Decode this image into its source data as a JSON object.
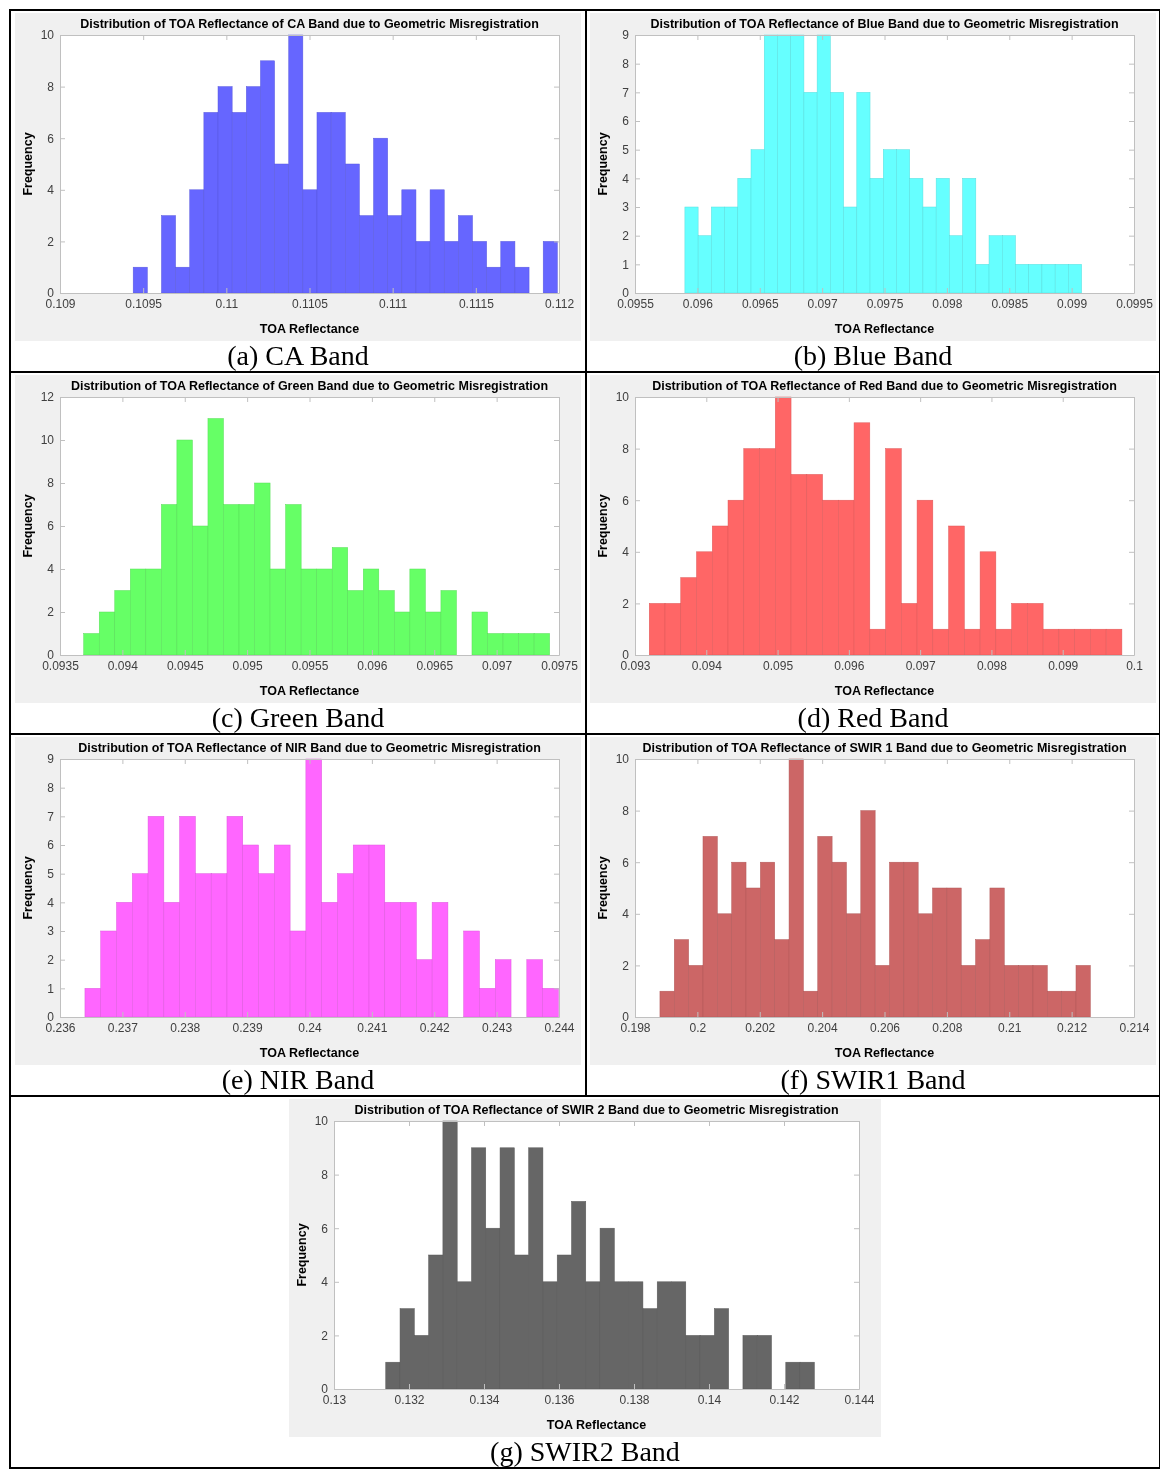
{
  "chart_data": [
    {
      "type": "histogram",
      "title": "Distribution of TOA Reflectance of CA Band due to Geometric Misregistration",
      "xlabel": "TOA Reflectance",
      "ylabel": "Frequency",
      "annotations": [
        "(a) CA Band"
      ],
      "color": "#6666ff",
      "bins": [
        0.10944,
        0.109525,
        0.10961,
        0.109695,
        0.10978,
        0.109865,
        0.10995,
        0.110035,
        0.11012,
        0.110205,
        0.11029,
        0.110375,
        0.11046,
        0.110545,
        0.11063,
        0.110715,
        0.1108,
        0.110885,
        0.11097,
        0.111055,
        0.11114,
        0.111225,
        0.11131,
        0.111395,
        0.11148,
        0.111565,
        0.11165,
        0.111735,
        0.11182,
        0.111905,
        0.11199
      ],
      "values": [
        1,
        0,
        3,
        1,
        4,
        7,
        8,
        7,
        8,
        9,
        5,
        10,
        4,
        7,
        7,
        5,
        3,
        6,
        3,
        4,
        2,
        4,
        2,
        3,
        2,
        1,
        2,
        1,
        0,
        2
      ],
      "xlim": [
        0.109,
        0.112
      ],
      "xticks": [
        0.109,
        0.1095,
        0.11,
        0.1105,
        0.111,
        0.1115,
        0.112
      ],
      "ylim": [
        0,
        10
      ],
      "yticks": [
        0,
        2,
        4,
        6,
        8,
        10
      ]
    },
    {
      "type": "histogram",
      "title": "Distribution of TOA Reflectance of Blue Band due to Geometric Misregistration",
      "xlabel": "TOA Reflectance",
      "ylabel": "Frequency",
      "annotations": [
        "(b) Blue Band"
      ],
      "color": "#66ffff",
      "bins": [
        0.0959,
        0.096006,
        0.096112,
        0.096218,
        0.096324,
        0.09643,
        0.096536,
        0.096642,
        0.096748,
        0.096854,
        0.09696,
        0.097066,
        0.097172,
        0.097278,
        0.097384,
        0.09749,
        0.097596,
        0.097702,
        0.097808,
        0.097914,
        0.09802,
        0.098126,
        0.098232,
        0.098338,
        0.098444,
        0.09855,
        0.098656,
        0.098762,
        0.098868,
        0.098974,
        0.09908
      ],
      "values": [
        3,
        2,
        3,
        3,
        4,
        5,
        9,
        9,
        9,
        7,
        9,
        7,
        3,
        7,
        4,
        5,
        5,
        4,
        3,
        4,
        2,
        4,
        1,
        2,
        2,
        1,
        1,
        1,
        1,
        1
      ],
      "xlim": [
        0.0955,
        0.0995
      ],
      "xticks": [
        0.0955,
        0.096,
        0.0965,
        0.097,
        0.0975,
        0.098,
        0.0985,
        0.099,
        0.0995
      ],
      "ylim": [
        0,
        9
      ],
      "yticks": [
        0,
        1,
        2,
        3,
        4,
        5,
        6,
        7,
        8,
        9
      ]
    },
    {
      "type": "histogram",
      "title": "Distribution of TOA Reflectance of Green Band due to Geometric Misregistration",
      "xlabel": "TOA Reflectance",
      "ylabel": "Frequency",
      "annotations": [
        "(c) Green Band"
      ],
      "color": "#66ff66",
      "bins": [
        0.09369,
        0.0938145,
        0.093939,
        0.0940635,
        0.094188,
        0.0943125,
        0.094437,
        0.0945615,
        0.094686,
        0.0948105,
        0.094935,
        0.0950595,
        0.095184,
        0.0953085,
        0.095433,
        0.0955575,
        0.095682,
        0.0958065,
        0.095931,
        0.0960555,
        0.09618,
        0.0963045,
        0.096429,
        0.0965535,
        0.096678,
        0.0968025,
        0.096927,
        0.0970515,
        0.097176,
        0.0973005,
        0.097425
      ],
      "values": [
        1,
        2,
        3,
        4,
        4,
        7,
        10,
        6,
        11,
        7,
        7,
        8,
        4,
        7,
        4,
        4,
        5,
        3,
        4,
        3,
        2,
        4,
        2,
        3,
        0,
        2,
        1,
        1,
        1,
        1
      ],
      "xlim": [
        0.0935,
        0.0975
      ],
      "xticks": [
        0.0935,
        0.094,
        0.0945,
        0.095,
        0.0955,
        0.096,
        0.0965,
        0.097,
        0.0975
      ],
      "ylim": [
        0,
        12
      ],
      "yticks": [
        0,
        2,
        4,
        6,
        8,
        10,
        12
      ]
    },
    {
      "type": "histogram",
      "title": "Distribution of TOA Reflectance of Red Band due to Geometric Misregistration",
      "xlabel": "TOA Reflectance",
      "ylabel": "Frequency",
      "annotations": [
        "(d) Red Band"
      ],
      "color": "#ff6666",
      "bins": [
        0.0932,
        0.093421,
        0.093642,
        0.093863,
        0.094084,
        0.094305,
        0.094526,
        0.094747,
        0.094968,
        0.095189,
        0.09541,
        0.095631,
        0.095852,
        0.096073,
        0.096294,
        0.096515,
        0.096736,
        0.096957,
        0.097178,
        0.097399,
        0.09762,
        0.097841,
        0.098062,
        0.098283,
        0.098504,
        0.098725,
        0.098946,
        0.099167,
        0.099388,
        0.099609,
        0.09983
      ],
      "values": [
        2,
        2,
        3,
        4,
        5,
        6,
        8,
        8,
        10,
        7,
        7,
        6,
        6,
        9,
        1,
        8,
        2,
        6,
        1,
        5,
        1,
        4,
        1,
        2,
        2,
        1,
        1,
        1,
        1,
        1
      ],
      "xlim": [
        0.093,
        0.1
      ],
      "xticks": [
        0.093,
        0.094,
        0.095,
        0.096,
        0.097,
        0.098,
        0.099,
        0.1
      ],
      "ylim": [
        0,
        10
      ],
      "yticks": [
        0,
        2,
        4,
        6,
        8,
        10
      ]
    },
    {
      "type": "histogram",
      "title": "Distribution of TOA Reflectance of NIR Band due to Geometric Misregistration",
      "xlabel": "TOA Reflectance",
      "ylabel": "Frequency",
      "annotations": [
        "(e) NIR Band"
      ],
      "color": "#ff66ff",
      "bins": [
        0.2364,
        0.236653,
        0.236906,
        0.237159,
        0.237412,
        0.237665,
        0.237918,
        0.238171,
        0.238424,
        0.238677,
        0.23893,
        0.239183,
        0.239436,
        0.239689,
        0.239942,
        0.240195,
        0.240448,
        0.240701,
        0.240954,
        0.241207,
        0.24146,
        0.241713,
        0.241966,
        0.242219,
        0.242472,
        0.242725,
        0.242978,
        0.243231,
        0.243484,
        0.243737,
        0.24399
      ],
      "values": [
        1,
        3,
        4,
        5,
        7,
        4,
        7,
        5,
        5,
        7,
        6,
        5,
        6,
        3,
        9,
        4,
        5,
        6,
        6,
        4,
        4,
        2,
        4,
        0,
        3,
        1,
        2,
        0,
        2,
        1
      ],
      "xlim": [
        0.236,
        0.244
      ],
      "xticks": [
        0.236,
        0.237,
        0.238,
        0.239,
        0.24,
        0.241,
        0.242,
        0.243,
        0.244
      ],
      "ylim": [
        0,
        9
      ],
      "yticks": [
        0,
        1,
        2,
        3,
        4,
        5,
        6,
        7,
        8,
        9
      ]
    },
    {
      "type": "histogram",
      "title": "Distribution of TOA Reflectance of SWIR 1 Band due to Geometric Misregistration",
      "xlabel": "TOA Reflectance",
      "ylabel": "Frequency",
      "annotations": [
        "(f) SWIR1 Band"
      ],
      "color": "#cc6666",
      "bins": [
        0.1988,
        0.19926,
        0.19972,
        0.20018,
        0.20064,
        0.2011,
        0.20156,
        0.20202,
        0.20248,
        0.20294,
        0.2034,
        0.20386,
        0.20432,
        0.20478,
        0.20524,
        0.2057,
        0.20616,
        0.20662,
        0.20708,
        0.20754,
        0.208,
        0.20846,
        0.20892,
        0.20938,
        0.20984,
        0.2103,
        0.21076,
        0.21122,
        0.21168,
        0.21214,
        0.2126
      ],
      "values": [
        1,
        3,
        2,
        7,
        4,
        6,
        5,
        6,
        3,
        10,
        1,
        7,
        6,
        4,
        8,
        2,
        6,
        6,
        4,
        5,
        5,
        2,
        3,
        5,
        2,
        2,
        2,
        1,
        1,
        2
      ],
      "xlim": [
        0.198,
        0.214
      ],
      "xticks": [
        0.198,
        0.2,
        0.202,
        0.204,
        0.206,
        0.208,
        0.21,
        0.212,
        0.214
      ],
      "ylim": [
        0,
        10
      ],
      "yticks": [
        0,
        2,
        4,
        6,
        8,
        10
      ]
    },
    {
      "type": "histogram",
      "title": "Distribution of TOA Reflectance of SWIR 2 Band due to Geometric Misregistration",
      "xlabel": "TOA Reflectance",
      "ylabel": "Frequency",
      "annotations": [
        "(g) SWIR2 Band"
      ],
      "color": "#666666",
      "bins": [
        0.13138,
        0.131761,
        0.132142,
        0.132523,
        0.132904,
        0.133285,
        0.133666,
        0.134047,
        0.134428,
        0.134809,
        0.13519,
        0.135571,
        0.135952,
        0.136333,
        0.136714,
        0.137095,
        0.137476,
        0.137857,
        0.138238,
        0.138619,
        0.139,
        0.139381,
        0.139762,
        0.140143,
        0.140524,
        0.140905,
        0.141286,
        0.141667,
        0.142048,
        0.142429,
        0.14281
      ],
      "values": [
        1,
        3,
        2,
        5,
        10,
        4,
        9,
        6,
        9,
        5,
        9,
        4,
        5,
        7,
        4,
        6,
        4,
        4,
        3,
        4,
        4,
        2,
        2,
        3,
        0,
        2,
        2,
        0,
        1,
        1
      ],
      "xlim": [
        0.13,
        0.144
      ],
      "xticks": [
        0.13,
        0.132,
        0.134,
        0.136,
        0.138,
        0.14,
        0.142,
        0.144
      ],
      "ylim": [
        0,
        10
      ],
      "yticks": [
        0,
        2,
        4,
        6,
        8,
        10
      ]
    }
  ]
}
